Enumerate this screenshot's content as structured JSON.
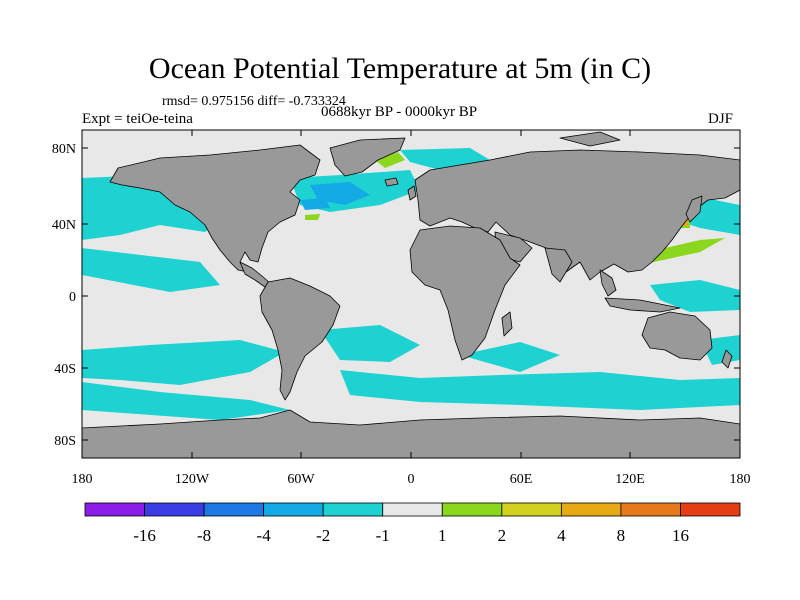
{
  "title": "Ocean Potential Temperature at 5m (in C)",
  "stats": "rmsd= 0.975156 diff= -0.733324",
  "experiment": "Expt = teiOe-teina",
  "period": "0688kyr BP - 0000kyr BP",
  "season": "DJF",
  "axes": {
    "lat_ticks": [
      "80N",
      "40N",
      "0",
      "40S",
      "80S"
    ],
    "lon_ticks": [
      "180",
      "120W",
      "60W",
      "0",
      "60E",
      "120E",
      "180"
    ]
  },
  "colorbar": {
    "colors": [
      "#8a1ee8",
      "#3c3ce6",
      "#1e78e6",
      "#14aae6",
      "#1ed2d2",
      "#e8e8e8",
      "#8ad71e",
      "#d2d21e",
      "#e6aa14",
      "#e6781e",
      "#e63c14"
    ],
    "labels": [
      "-16",
      "-8",
      "-4",
      "-2",
      "-1",
      "1",
      "2",
      "4",
      "8",
      "16"
    ]
  },
  "map_colors": {
    "land": "#999999",
    "ocean_neutral": "#e8e8e8",
    "coast": "#000000"
  },
  "icons": [
    "world-map"
  ]
}
